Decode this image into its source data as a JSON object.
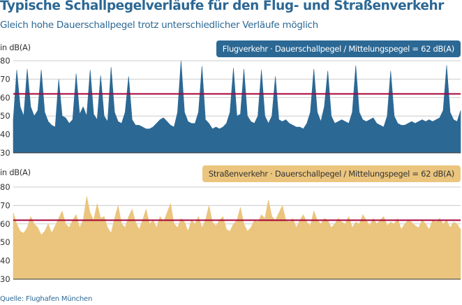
{
  "title": "Typische Schallpegelverläufe für den Flug- und Straßenverkehr",
  "subtitle": "Gleich hohe Dauerschallpegel trotz unterschiedlicher Verläufe möglich",
  "source": "Quelle: Flughafen München",
  "chart_data": [
    {
      "type": "area",
      "ylabel": "in dB(A)",
      "legend": "Flugverkehr · Dauerschallpegel / Mittelungspegel = 62 dB(A)",
      "legend_placement": "top-right",
      "ylim": [
        30,
        80
      ],
      "yticks": [
        "30",
        "40",
        "50",
        "60",
        "70",
        "80"
      ],
      "grid": true,
      "reference_line": 62,
      "color": "#2c6894",
      "reference_color": "#a6003a",
      "values": [
        48,
        75,
        55,
        50,
        75.5,
        55,
        50,
        53,
        75,
        52,
        47,
        45,
        44,
        70,
        50,
        49,
        46,
        48,
        73,
        51,
        55,
        50,
        75,
        51,
        48,
        72,
        50,
        47,
        76.5,
        52,
        47,
        46,
        52,
        71.5,
        48,
        45,
        45,
        44,
        43,
        43,
        44,
        46,
        48,
        49,
        47,
        45,
        44,
        52,
        80,
        52,
        47,
        46,
        46,
        52,
        77,
        48,
        46,
        43,
        44,
        43,
        44,
        46,
        52,
        76,
        50,
        51,
        75.5,
        50,
        47,
        46,
        50,
        75,
        50,
        46,
        50,
        71.5,
        48,
        47,
        48,
        46,
        45,
        44,
        44,
        43,
        46,
        52,
        75.5,
        52,
        47,
        55,
        74.5,
        50,
        46,
        47,
        48,
        47,
        46,
        52,
        77.5,
        52,
        48,
        47,
        48,
        49,
        46,
        45,
        44,
        50,
        74.5,
        50,
        46,
        45,
        45,
        46,
        47,
        46,
        47,
        48,
        47,
        48,
        47,
        48,
        49,
        53,
        77.5,
        52,
        48,
        47,
        53
      ]
    },
    {
      "type": "area",
      "ylabel": "in dB(A)",
      "legend": "Straßenverkehr · Dauerschallpegel / Mittelungspegel = 62 dB(A)",
      "legend_placement": "top-right",
      "ylim": [
        30,
        80
      ],
      "yticks": [
        "30",
        "40",
        "50",
        "60",
        "70",
        "80"
      ],
      "grid": true,
      "reference_line": 62,
      "color": "#ebc57e",
      "reference_color": "#a6003a",
      "values": [
        66,
        60,
        56,
        55,
        58,
        64,
        60,
        58,
        54,
        56,
        60,
        55,
        59,
        63,
        67,
        60,
        58,
        62,
        65,
        58,
        62,
        75,
        66,
        62,
        71,
        63,
        64,
        58,
        55,
        63,
        70,
        60,
        58,
        64,
        68,
        61,
        57,
        62,
        68,
        60,
        62,
        58,
        64,
        61,
        66,
        71,
        60,
        58,
        63,
        61,
        56,
        62,
        60,
        64,
        58,
        62,
        70,
        61,
        59,
        62,
        64,
        57,
        56,
        60,
        62,
        69,
        60,
        56,
        58,
        62,
        61,
        65,
        63,
        73,
        64,
        62,
        66,
        70,
        62,
        61,
        63,
        58,
        62,
        65,
        61,
        59,
        67,
        62,
        60,
        63,
        62,
        58,
        60,
        63,
        61,
        60,
        64,
        58,
        61,
        60,
        65,
        62,
        59,
        63,
        60,
        62,
        64,
        59,
        61,
        60,
        63,
        57,
        60,
        62,
        61,
        59,
        58,
        62,
        60,
        57,
        62,
        61,
        63,
        60,
        62,
        58,
        61,
        60,
        57
      ]
    }
  ]
}
